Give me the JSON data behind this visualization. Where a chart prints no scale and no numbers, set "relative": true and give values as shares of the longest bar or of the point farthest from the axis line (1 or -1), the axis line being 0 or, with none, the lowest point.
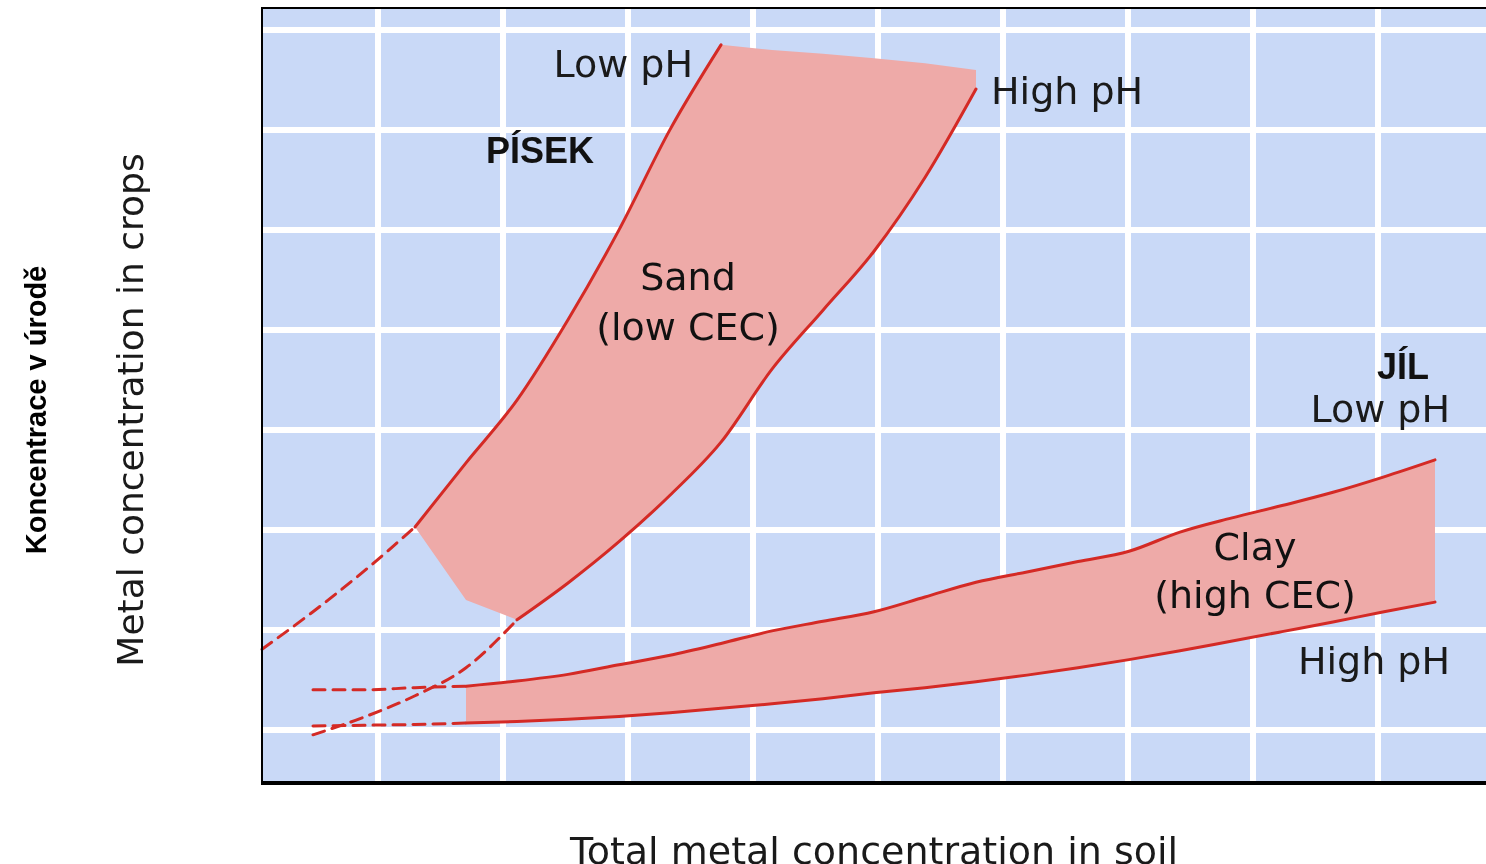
{
  "chart_data": {
    "type": "line",
    "relative": true,
    "xlabel": "Total metal concentration in soil",
    "ylabel": "Metal concentration in crops",
    "annotations": [
      "PÍSEK",
      "Sand\n(low CEC)",
      "JÍL",
      "Clay\n(high CEC)",
      "Koncentrace v úrodě"
    ],
    "categories": [
      null,
      null,
      null,
      null,
      null,
      null,
      null,
      null,
      null,
      null,
      null,
      null,
      null,
      null,
      null,
      null,
      null,
      null,
      null,
      null,
      null,
      null,
      null,
      null,
      null
    ],
    "grid": true,
    "legend": false,
    "marker": "none",
    "series": [
      {
        "name": "Low pH",
        "color": "#d42a25",
        "values": [
          null,
          null,
          null,
          0.346,
          0.433,
          0.518,
          0.627,
          0.749,
          0.885,
          1,
          null,
          null,
          null,
          null,
          null,
          null,
          null,
          null,
          null,
          null,
          null,
          null,
          null,
          null,
          null
        ],
        "lower": [
          null,
          null,
          null,
          0.346,
          0.247,
          0.22,
          0.27,
          0.326,
          0.389,
          0.461,
          0.56,
          0.64,
          0.72,
          0.82,
          0.94,
          null,
          null,
          null,
          null,
          null,
          null,
          null,
          null,
          null,
          null
        ],
        "upper": [
          null,
          null,
          null,
          0.346,
          0.433,
          0.518,
          0.627,
          0.749,
          0.885,
          1,
          0.993,
          0.988,
          0.982,
          0.975,
          0.966,
          null,
          null,
          null,
          null,
          null,
          null,
          null,
          null,
          null,
          null
        ]
      },
      {
        "color": "#d42a25",
        "line_style": "dashed",
        "values": [
          0.18,
          0.231,
          0.286,
          0.346,
          null,
          null,
          null,
          null,
          null,
          null,
          null,
          null,
          null,
          null,
          null,
          null,
          null,
          null,
          null,
          null,
          null,
          null,
          null,
          null,
          null
        ]
      },
      {
        "name": "High pH",
        "color": "#d42a25",
        "values": [
          null,
          null,
          null,
          null,
          null,
          0.22,
          0.27,
          0.326,
          0.389,
          0.461,
          0.56,
          0.64,
          0.72,
          0.82,
          0.94,
          null,
          null,
          null,
          null,
          null,
          null,
          null,
          null,
          null,
          null
        ]
      },
      {
        "color": "#d42a25",
        "line_style": "dashed",
        "values": [
          null,
          0.064,
          0.088,
          0.117,
          0.155,
          0.22,
          null,
          null,
          null,
          null,
          null,
          null,
          null,
          null,
          null,
          null,
          null,
          null,
          null,
          null,
          null,
          null,
          null,
          null,
          null
        ]
      },
      {
        "name": "Low pH",
        "color": "#d42a25",
        "values": [
          null,
          null,
          null,
          null,
          0.13,
          0.137,
          0.146,
          0.159,
          0.172,
          0.188,
          0.205,
          0.218,
          0.231,
          0.251,
          0.271,
          0.285,
          0.299,
          0.313,
          0.339,
          0.358,
          0.375,
          0.393,
          0.414,
          0.437,
          null
        ],
        "lower": [
          null,
          null,
          null,
          null,
          0.08,
          0.082,
          0.085,
          0.089,
          0.094,
          0.1,
          0.106,
          0.113,
          0.121,
          0.128,
          0.136,
          0.145,
          0.155,
          0.166,
          0.178,
          0.191,
          0.204,
          0.217,
          0.231,
          0.244,
          null
        ],
        "upper": [
          null,
          null,
          null,
          null,
          0.13,
          0.137,
          0.146,
          0.159,
          0.172,
          0.188,
          0.205,
          0.218,
          0.231,
          0.251,
          0.271,
          0.285,
          0.299,
          0.313,
          0.339,
          0.358,
          0.375,
          0.393,
          0.414,
          0.437,
          null
        ]
      },
      {
        "color": "#d42a25",
        "line_style": "dashed",
        "values": [
          null,
          0.125,
          0.125,
          0.128,
          0.13,
          null,
          null,
          null,
          null,
          null,
          null,
          null,
          null,
          null,
          null,
          null,
          null,
          null,
          null,
          null,
          null,
          null,
          null,
          null,
          null
        ]
      },
      {
        "name": "High pH",
        "color": "#d42a25",
        "values": [
          null,
          null,
          null,
          null,
          0.08,
          0.082,
          0.085,
          0.089,
          0.094,
          0.1,
          0.106,
          0.113,
          0.121,
          0.128,
          0.136,
          0.145,
          0.155,
          0.166,
          0.178,
          0.191,
          0.204,
          0.217,
          0.231,
          0.244,
          null
        ]
      },
      {
        "color": "#d42a25",
        "line_style": "dashed",
        "values": [
          null,
          0.076,
          0.077,
          0.078,
          0.08,
          null,
          null,
          null,
          null,
          null,
          null,
          null,
          null,
          null,
          null,
          null,
          null,
          null,
          null,
          null,
          null,
          null,
          null,
          null,
          null
        ]
      }
    ]
  }
}
